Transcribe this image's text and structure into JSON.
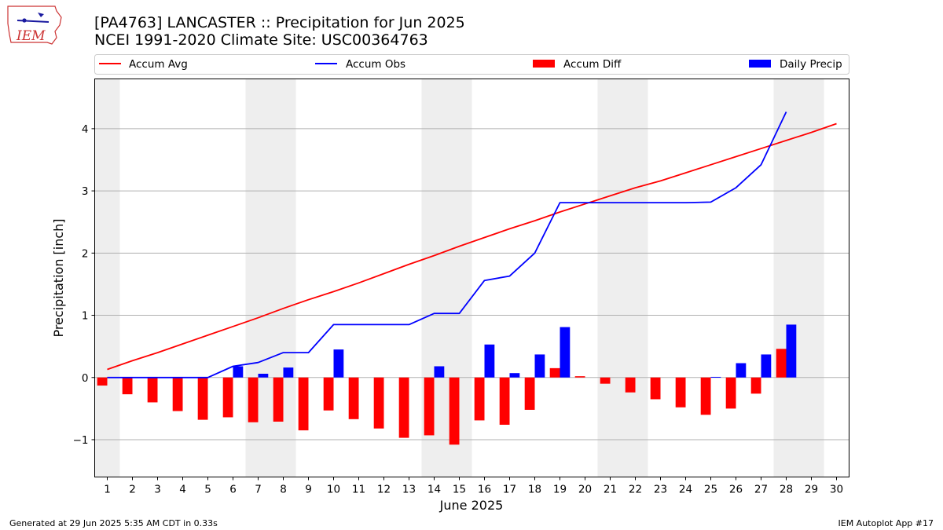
{
  "header": {
    "logo_text": "IEM",
    "title_line1": "[PA4763] LANCASTER :: Precipitation for Jun 2025",
    "title_line2": "NCEI 1991-2020 Climate Site: USC00364763"
  },
  "footer": {
    "left": "Generated at 29 Jun 2025 5:35 AM CDT in 0.33s",
    "right": "IEM Autoplot App #17"
  },
  "colors": {
    "avg": "#ff0000",
    "obs": "#0000ff",
    "diff": "#ff0000",
    "daily": "#0000ff",
    "weekend_band": "#eeeeee",
    "grid": "#b0b0b0"
  },
  "chart_data": {
    "type": "bar",
    "xlabel": "June 2025",
    "ylabel": "Precipitation [inch]",
    "xlim": [
      0.5,
      30.5
    ],
    "ylim": [
      -1.6,
      4.8
    ],
    "y_ticks": [
      -1,
      0,
      1,
      2,
      3,
      4
    ],
    "y_tick_labels": [
      "−1",
      "0",
      "1",
      "2",
      "3",
      "4"
    ],
    "x_ticks": [
      1,
      2,
      3,
      4,
      5,
      6,
      7,
      8,
      9,
      10,
      11,
      12,
      13,
      14,
      15,
      16,
      17,
      18,
      19,
      20,
      21,
      22,
      23,
      24,
      25,
      26,
      27,
      28,
      29,
      30
    ],
    "grid": "horizontal",
    "legend_position": "top",
    "weekend_bands": [
      [
        0.5,
        1.5
      ],
      [
        6.5,
        8.5
      ],
      [
        13.5,
        15.5
      ],
      [
        20.5,
        22.5
      ],
      [
        27.5,
        29.5
      ]
    ],
    "series": [
      {
        "name": "Accum Avg",
        "kind": "line",
        "x": [
          1,
          2,
          3,
          4,
          5,
          6,
          7,
          8,
          9,
          10,
          11,
          12,
          13,
          14,
          15,
          16,
          17,
          18,
          19,
          20,
          21,
          22,
          23,
          24,
          25,
          26,
          27,
          28,
          29,
          30
        ],
        "values": [
          0.13,
          0.27,
          0.4,
          0.54,
          0.68,
          0.82,
          0.96,
          1.11,
          1.25,
          1.38,
          1.52,
          1.67,
          1.82,
          1.96,
          2.11,
          2.25,
          2.39,
          2.52,
          2.66,
          2.79,
          2.92,
          3.05,
          3.16,
          3.29,
          3.42,
          3.55,
          3.68,
          3.81,
          3.94,
          4.08
        ]
      },
      {
        "name": "Accum Obs",
        "kind": "line",
        "x": [
          1,
          2,
          3,
          4,
          5,
          6,
          7,
          8,
          9,
          10,
          11,
          12,
          13,
          14,
          15,
          16,
          17,
          18,
          19,
          20,
          21,
          22,
          23,
          24,
          25,
          26,
          27,
          28
        ],
        "values": [
          0,
          0,
          0,
          0,
          0,
          0.18,
          0.24,
          0.4,
          0.4,
          0.85,
          0.85,
          0.85,
          0.85,
          1.03,
          1.03,
          1.56,
          1.63,
          2.0,
          2.81,
          2.81,
          2.81,
          2.81,
          2.81,
          2.81,
          2.82,
          3.05,
          3.42,
          4.27
        ]
      },
      {
        "name": "Accum Diff",
        "kind": "bar",
        "x": [
          1,
          2,
          3,
          4,
          5,
          6,
          7,
          8,
          9,
          10,
          11,
          12,
          13,
          14,
          15,
          16,
          17,
          18,
          19,
          20,
          21,
          22,
          23,
          24,
          25,
          26,
          27,
          28
        ],
        "values": [
          -0.13,
          -0.27,
          -0.4,
          -0.54,
          -0.68,
          -0.64,
          -0.72,
          -0.71,
          -0.85,
          -0.53,
          -0.67,
          -0.82,
          -0.97,
          -0.93,
          -1.08,
          -0.69,
          -0.76,
          -0.52,
          0.15,
          0.02,
          -0.1,
          -0.24,
          -0.35,
          -0.48,
          -0.6,
          -0.5,
          -0.26,
          0.46
        ]
      },
      {
        "name": "Daily Precip",
        "kind": "bar",
        "x": [
          1,
          2,
          3,
          4,
          5,
          6,
          7,
          8,
          9,
          10,
          11,
          12,
          13,
          14,
          15,
          16,
          17,
          18,
          19,
          20,
          21,
          22,
          23,
          24,
          25,
          26,
          27,
          28
        ],
        "values": [
          0,
          0,
          0,
          0,
          0,
          0.18,
          0.06,
          0.16,
          0,
          0.45,
          0,
          0,
          0,
          0.18,
          0,
          0.53,
          0.07,
          0.37,
          0.81,
          0,
          0,
          0,
          0,
          0,
          0.01,
          0.23,
          0.37,
          0.85
        ]
      }
    ]
  }
}
